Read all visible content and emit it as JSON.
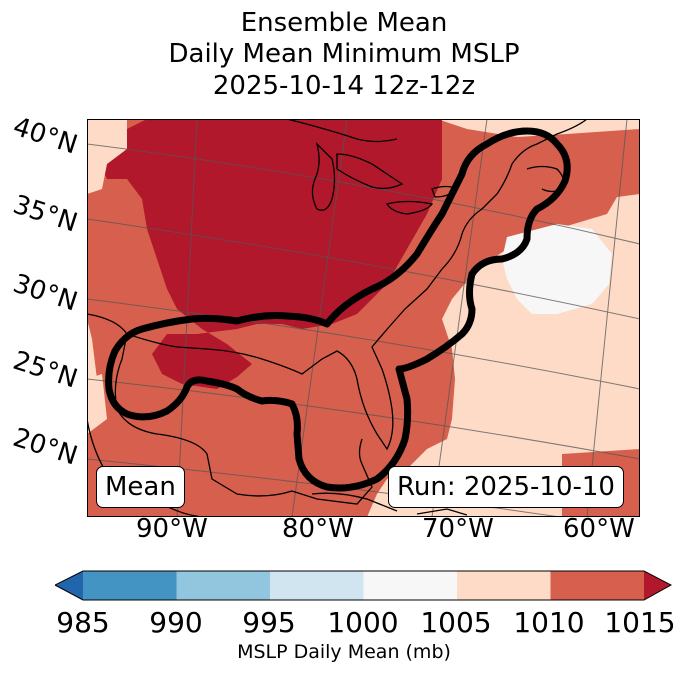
{
  "title": {
    "line1": "Ensemble Mean",
    "line2": "Daily Mean Minimum MSLP",
    "line3": "2025-10-14 12z-12z"
  },
  "map": {
    "lat_labels": [
      "40°N",
      "35°N",
      "30°N",
      "25°N",
      "20°N"
    ],
    "lon_labels": [
      "90°W",
      "80°W",
      "70°W",
      "60°W"
    ],
    "annotation_left": "Mean",
    "annotation_right": "Run: 2025-10-10",
    "contour_color": "#000000"
  },
  "colorbar": {
    "label": "MSLP Daily Mean (mb)",
    "ticks": [
      "985",
      "990",
      "995",
      "1000",
      "1005",
      "1010",
      "1015"
    ],
    "bins": [
      {
        "range": "<985",
        "color": "#2166ac"
      },
      {
        "range": "985-990",
        "color": "#4393c3"
      },
      {
        "range": "990-995",
        "color": "#92c5de"
      },
      {
        "range": "995-1000",
        "color": "#d1e5f0"
      },
      {
        "range": "1000-1005",
        "color": "#f7f7f7"
      },
      {
        "range": "1005-1010",
        "color": "#fddbc7"
      },
      {
        "range": "1010-1015",
        "color": "#d6604d"
      },
      {
        "range": ">1015",
        "color": "#b2182b"
      }
    ]
  }
}
